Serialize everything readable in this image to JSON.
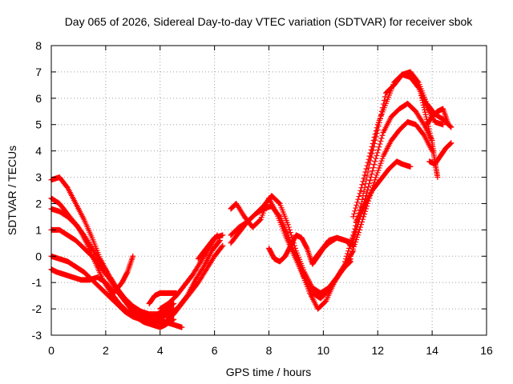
{
  "chart_data": {
    "type": "scatter",
    "title": "Day 065 of 2026, Sidereal Day-to-day VTEC variation (SDTVAR) for receiver sbok",
    "xlabel": "GPS time / hours",
    "ylabel": "SDTVAR / TECUs",
    "xlim": [
      0,
      16
    ],
    "ylim": [
      -3,
      8
    ],
    "xticks": [
      0,
      2,
      4,
      6,
      8,
      10,
      12,
      14,
      16
    ],
    "yticks": [
      -3,
      -2,
      -1,
      0,
      1,
      2,
      3,
      4,
      5,
      6,
      7,
      8
    ],
    "grid": true,
    "marker": "+",
    "color": "#ff0000",
    "series": [
      {
        "x": [
          0.0,
          0.2,
          0.5,
          0.8,
          1.1,
          1.4,
          1.7,
          2.0,
          2.3,
          2.6,
          2.8,
          3.0
        ],
        "y": [
          -0.5,
          -0.6,
          -0.7,
          -0.8,
          -0.9,
          -0.9,
          -0.8,
          -1.0,
          -1.4,
          -1.0,
          -0.6,
          0.0
        ]
      },
      {
        "x": [
          0.0,
          0.3,
          0.6,
          1.0,
          1.3,
          1.6,
          1.9,
          2.2,
          2.5,
          2.8,
          3.1,
          3.4,
          3.7,
          4.0,
          4.2,
          4.5
        ],
        "y": [
          2.2,
          2.0,
          1.6,
          1.1,
          0.5,
          -0.2,
          -0.9,
          -1.4,
          -1.8,
          -2.1,
          -2.3,
          -2.5,
          -2.6,
          -2.7,
          -2.6,
          -2.4
        ]
      },
      {
        "x": [
          0.0,
          0.3,
          0.6,
          0.9,
          1.2,
          1.5,
          1.8,
          2.1,
          2.4,
          2.7,
          3.0,
          3.3,
          3.6,
          3.9,
          4.2,
          4.5,
          4.8
        ],
        "y": [
          0.0,
          -0.1,
          -0.2,
          -0.4,
          -0.6,
          -0.9,
          -1.2,
          -1.5,
          -1.8,
          -2.1,
          -2.3,
          -2.4,
          -2.5,
          -2.5,
          -2.5,
          -2.6,
          -2.7
        ]
      },
      {
        "x": [
          0.0,
          0.3,
          0.6,
          0.9,
          1.2,
          1.5,
          1.8,
          2.1,
          2.4,
          2.7,
          3.0,
          3.3,
          3.6,
          3.9,
          4.2,
          4.5
        ],
        "y": [
          1.0,
          1.0,
          0.8,
          0.6,
          0.3,
          0.0,
          -0.4,
          -0.8,
          -1.3,
          -1.7,
          -2.0,
          -2.2,
          -2.3,
          -2.3,
          -2.2,
          -2.0
        ]
      },
      {
        "x": [
          0.0,
          0.3,
          0.6,
          0.9,
          1.2,
          1.5,
          1.8,
          2.1,
          2.4,
          2.7,
          3.0,
          3.3,
          3.6,
          3.9,
          4.2
        ],
        "y": [
          2.9,
          3.0,
          2.6,
          2.0,
          1.4,
          0.7,
          -0.1,
          -0.7,
          -1.2,
          -1.7,
          -2.1,
          -2.3,
          -2.4,
          -2.5,
          -2.5
        ]
      },
      {
        "x": [
          0.0,
          0.3,
          0.6,
          0.9,
          1.2,
          1.5,
          1.8,
          2.1,
          2.4,
          2.7,
          3.0,
          3.3,
          3.6,
          3.9,
          4.2,
          4.5
        ],
        "y": [
          1.8,
          1.7,
          1.5,
          1.2,
          0.8,
          0.3,
          -0.2,
          -0.7,
          -1.2,
          -1.6,
          -1.9,
          -2.1,
          -2.2,
          -2.2,
          -2.0,
          -1.8
        ]
      },
      {
        "x": [
          3.6,
          3.8,
          4.0,
          4.2,
          4.4,
          4.6
        ],
        "y": [
          -1.8,
          -1.5,
          -1.4,
          -1.4,
          -1.4,
          -1.4
        ]
      },
      {
        "x": [
          3.5,
          3.8,
          4.1,
          4.4,
          4.7,
          5.0,
          5.3,
          5.6,
          5.9,
          6.2
        ],
        "y": [
          -2.5,
          -2.5,
          -2.3,
          -2.2,
          -1.9,
          -1.5,
          -0.9,
          -0.4,
          0.2,
          0.6
        ]
      },
      {
        "x": [
          4.0,
          4.3,
          4.6,
          4.9,
          5.2,
          5.5,
          5.8,
          6.1
        ],
        "y": [
          -2.0,
          -1.8,
          -1.5,
          -1.1,
          -0.7,
          -0.2,
          0.3,
          0.8
        ]
      },
      {
        "x": [
          4.2,
          4.5,
          4.8,
          5.1,
          5.4,
          5.7,
          6.0,
          6.3
        ],
        "y": [
          -2.5,
          -2.2,
          -1.8,
          -1.4,
          -1.0,
          -0.5,
          0.0,
          0.4
        ]
      },
      {
        "x": [
          5.4,
          5.7,
          6.0,
          6.3
        ],
        "y": [
          -0.1,
          0.3,
          0.7,
          0.8
        ]
      },
      {
        "x": [
          6.6,
          6.9,
          7.2,
          7.5,
          7.8,
          8.1,
          8.4,
          8.7,
          9.0,
          9.3,
          9.6,
          9.9,
          10.2,
          10.5,
          10.8,
          11.0
        ],
        "y": [
          0.5,
          0.9,
          1.3,
          1.6,
          1.8,
          1.9,
          1.5,
          0.8,
          0.0,
          -0.8,
          -1.4,
          -1.6,
          -1.3,
          -0.8,
          -0.4,
          -0.2
        ]
      },
      {
        "x": [
          6.6,
          6.8,
          7.1,
          7.4,
          7.7,
          8.0,
          8.3,
          8.6,
          8.9,
          9.2,
          9.5,
          9.8,
          10.1,
          10.4,
          10.7,
          11.0
        ],
        "y": [
          1.8,
          2.0,
          1.5,
          1.1,
          1.4,
          2.2,
          1.6,
          0.8,
          0.1,
          -0.6,
          -1.4,
          -2.0,
          -1.7,
          -1.0,
          -0.5,
          -0.1
        ]
      },
      {
        "x": [
          6.6,
          6.9,
          7.2,
          7.5,
          7.8,
          8.1,
          8.4,
          8.7,
          9.0,
          9.3,
          9.6,
          9.9,
          10.2,
          10.5,
          10.8,
          11.1
        ],
        "y": [
          0.8,
          1.1,
          1.3,
          1.6,
          1.9,
          2.3,
          2.0,
          1.2,
          0.2,
          -0.6,
          -1.2,
          -1.4,
          -1.2,
          -0.8,
          -0.3,
          0.2
        ]
      },
      {
        "x": [
          8.0,
          8.2,
          8.4,
          8.6,
          8.8,
          9.0,
          9.2,
          9.4,
          9.6,
          9.8,
          10.0,
          10.2,
          10.5,
          10.8,
          11.1
        ],
        "y": [
          0.3,
          -0.1,
          -0.2,
          0.0,
          0.4,
          0.8,
          0.7,
          0.3,
          -0.3,
          0.0,
          0.3,
          0.5,
          0.7,
          0.6,
          0.4
        ]
      },
      {
        "x": [
          9.6,
          9.9,
          10.2,
          10.5,
          10.8,
          11.1
        ],
        "y": [
          -0.2,
          0.2,
          0.6,
          0.7,
          0.6,
          0.5
        ]
      },
      {
        "x": [
          10.8,
          11.1,
          11.4,
          11.7,
          12.0,
          12.3,
          12.6,
          12.9,
          13.2,
          13.5,
          13.8,
          14.1,
          14.4,
          14.7
        ],
        "y": [
          -0.2,
          0.8,
          2.0,
          3.5,
          4.8,
          6.2,
          6.5,
          6.9,
          7.0,
          6.6,
          5.8,
          5.4,
          5.2,
          4.9
        ]
      },
      {
        "x": [
          11.1,
          11.4,
          11.7,
          12.0,
          12.3,
          12.6,
          12.9,
          13.2,
          13.5,
          13.8,
          14.1,
          14.4
        ],
        "y": [
          1.5,
          2.6,
          3.8,
          5.0,
          5.8,
          6.6,
          6.9,
          6.8,
          6.4,
          5.7,
          5.1,
          5.0
        ]
      },
      {
        "x": [
          11.0,
          11.3,
          11.6,
          11.9,
          12.2,
          12.5,
          12.8,
          13.1,
          13.4,
          13.7,
          14.0
        ],
        "y": [
          0.4,
          1.3,
          2.4,
          3.6,
          4.7,
          5.3,
          5.6,
          5.8,
          5.5,
          5.0,
          4.4
        ]
      },
      {
        "x": [
          11.0,
          11.3,
          11.6,
          11.9,
          12.2,
          12.5,
          12.8,
          13.1,
          13.4,
          13.7,
          14.0
        ],
        "y": [
          0.0,
          0.9,
          1.9,
          2.9,
          3.8,
          4.4,
          4.8,
          5.1,
          5.0,
          4.6,
          4.0
        ]
      },
      {
        "x": [
          11.2,
          11.5,
          11.8,
          12.1,
          12.4,
          12.7,
          12.9,
          13.2
        ],
        "y": [
          1.3,
          1.9,
          2.5,
          2.9,
          3.3,
          3.6,
          3.5,
          3.4
        ]
      },
      {
        "x": [
          13.9,
          14.1,
          14.3,
          14.5,
          14.7
        ],
        "y": [
          3.6,
          3.5,
          3.8,
          4.1,
          4.3
        ]
      },
      {
        "x": [
          13.6,
          13.8,
          14.0,
          14.1,
          14.2
        ],
        "y": [
          6.1,
          5.2,
          4.3,
          3.6,
          3.0
        ]
      },
      {
        "x": [
          13.8,
          14.0,
          14.2,
          14.4,
          14.6
        ],
        "y": [
          5.0,
          5.3,
          5.5,
          5.6,
          5.0
        ]
      }
    ]
  }
}
